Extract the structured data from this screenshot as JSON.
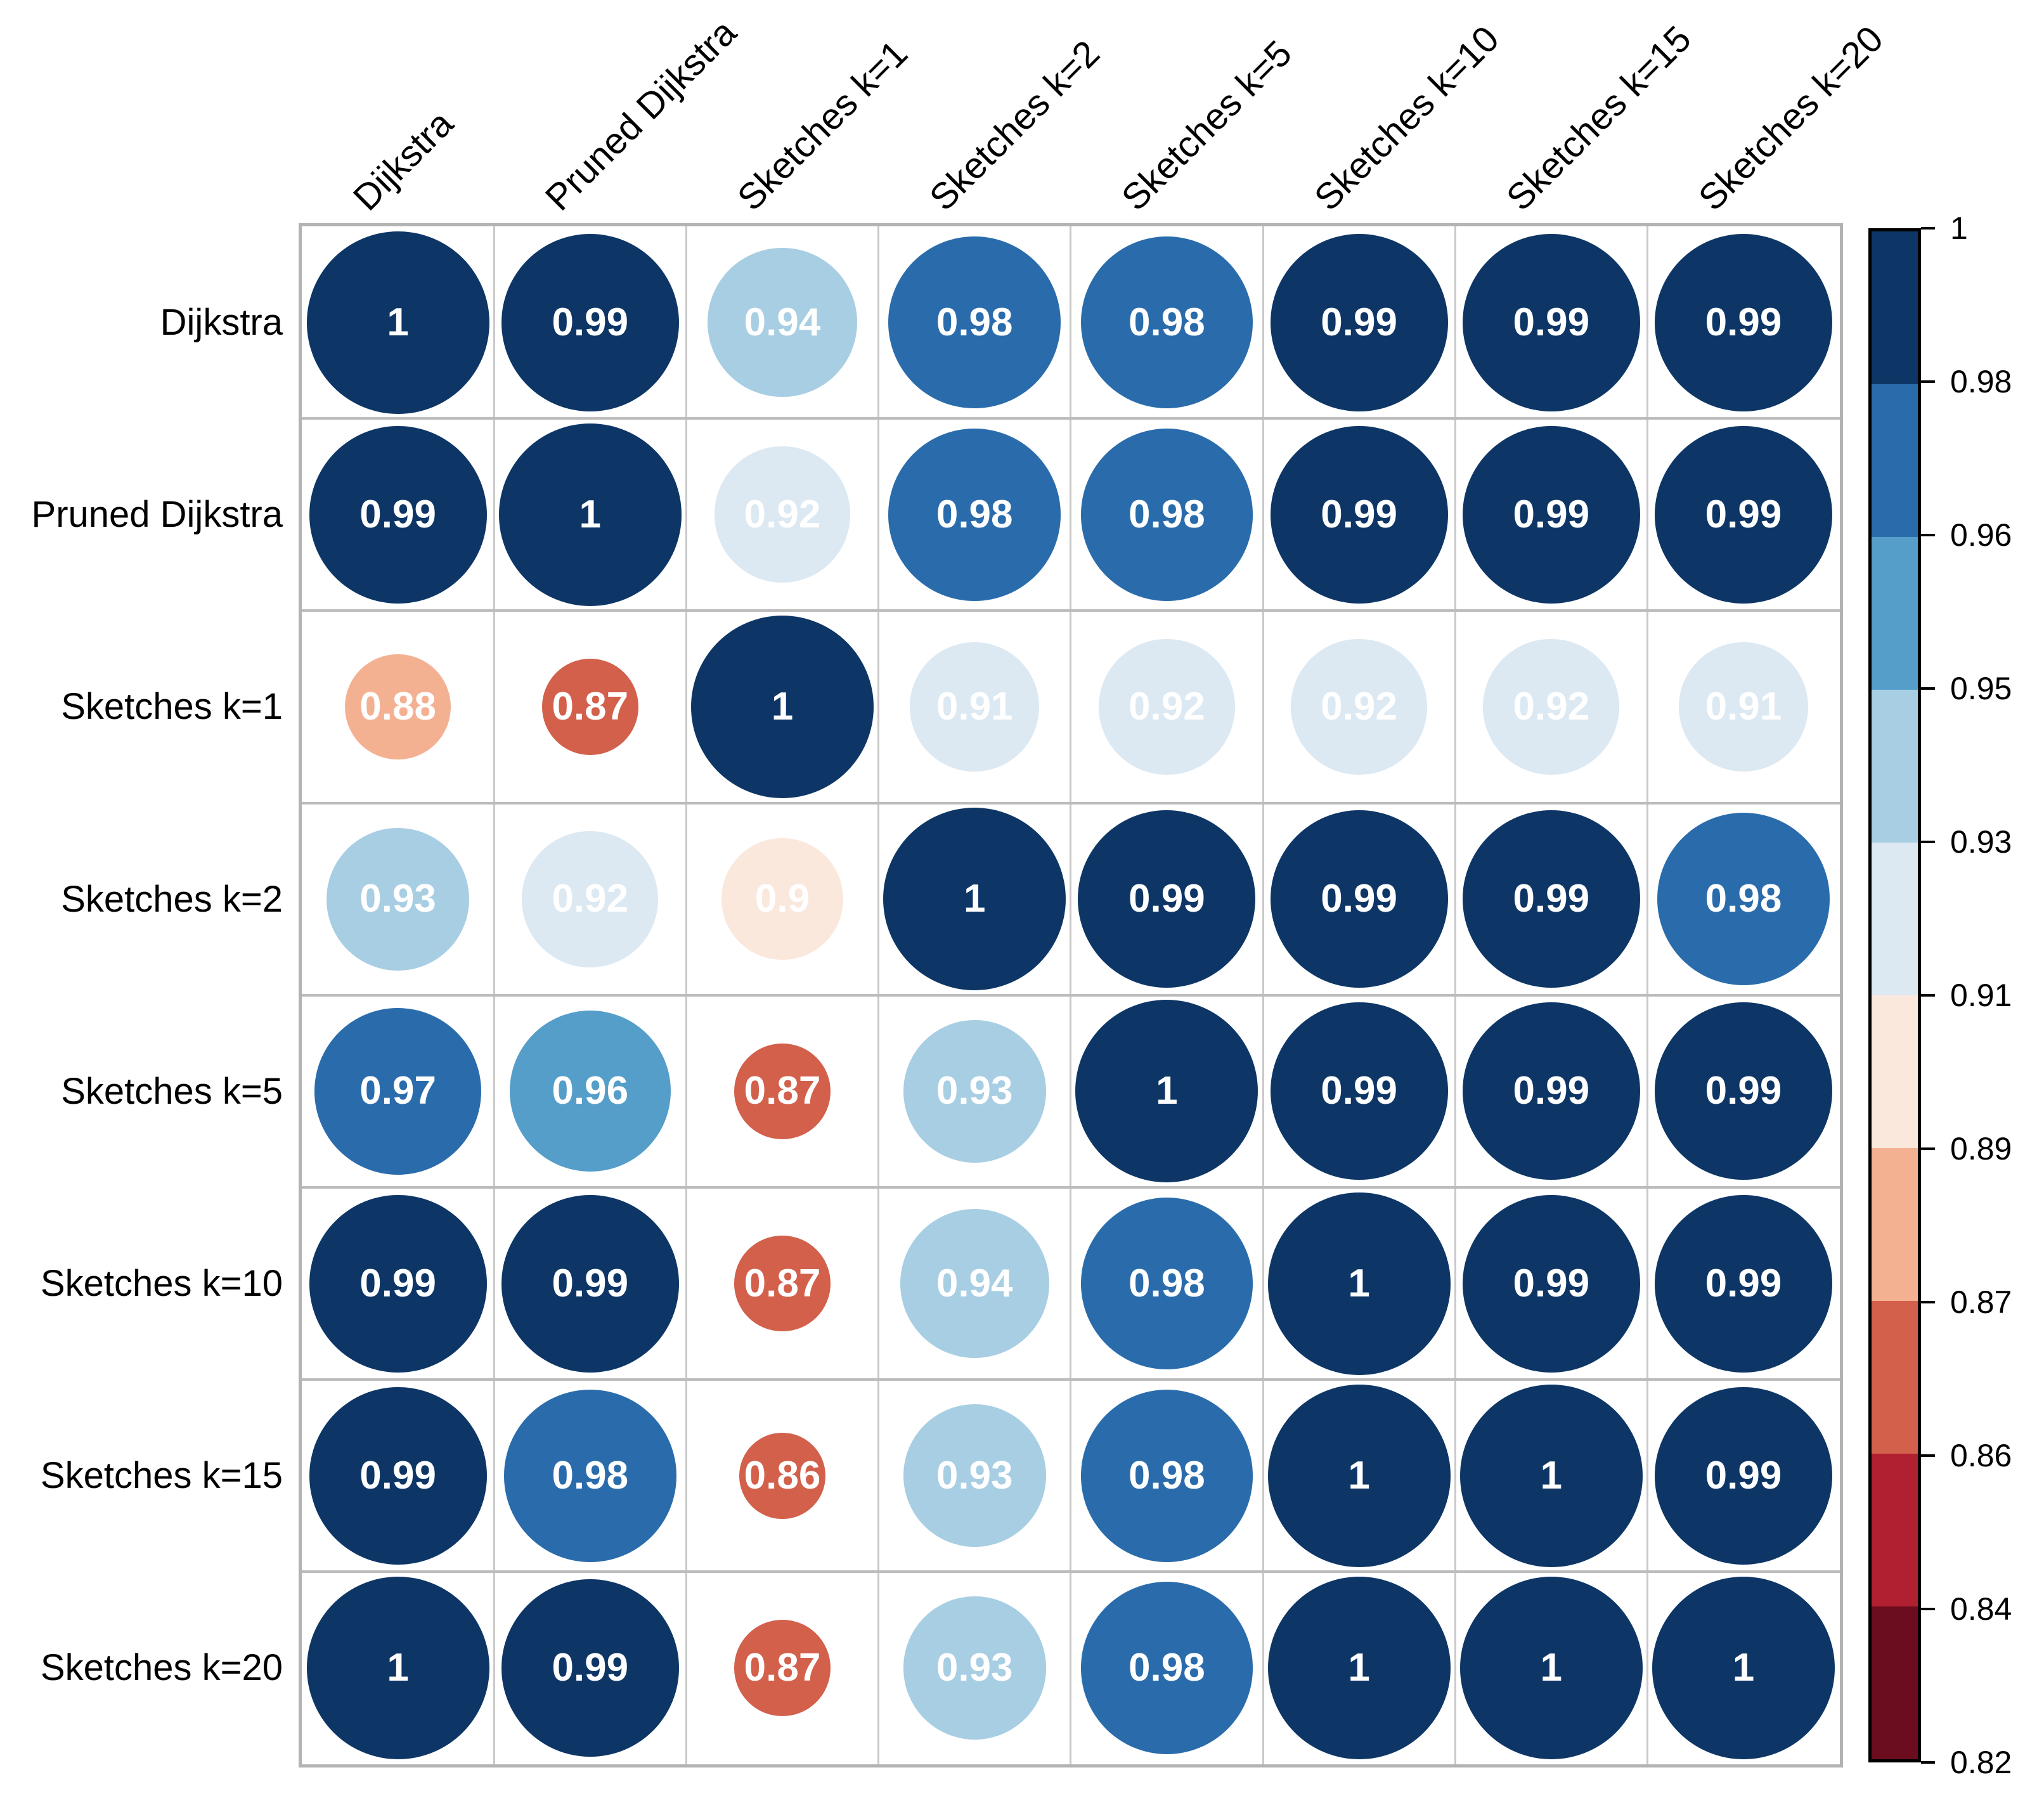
{
  "chart_data": {
    "type": "heatmap",
    "subtype": "correlation-circle-matrix",
    "title": "",
    "row_labels": [
      "Dijkstra",
      "Pruned Dijkstra",
      "Sketches k=1",
      "Sketches k=2",
      "Sketches k=5",
      "Sketches k=10",
      "Sketches k=15",
      "Sketches k=20"
    ],
    "col_labels": [
      "Dijkstra",
      "Pruned Dijkstra",
      "Sketches k=1",
      "Sketches k=2",
      "Sketches k=5",
      "Sketches k=10",
      "Sketches k=15",
      "Sketches k=20"
    ],
    "series": [
      {
        "name": "Dijkstra",
        "values": [
          1,
          0.99,
          0.94,
          0.98,
          0.98,
          0.99,
          0.99,
          0.99
        ]
      },
      {
        "name": "Pruned Dijkstra",
        "values": [
          0.99,
          1,
          0.92,
          0.98,
          0.98,
          0.99,
          0.99,
          0.99
        ]
      },
      {
        "name": "Sketches k=1",
        "values": [
          0.88,
          0.87,
          1,
          0.91,
          0.92,
          0.92,
          0.92,
          0.91
        ]
      },
      {
        "name": "Sketches k=2",
        "values": [
          0.93,
          0.92,
          0.9,
          1,
          0.99,
          0.99,
          0.99,
          0.98
        ]
      },
      {
        "name": "Sketches k=5",
        "values": [
          0.97,
          0.96,
          0.87,
          0.93,
          1,
          0.99,
          0.99,
          0.99
        ]
      },
      {
        "name": "Sketches k=10",
        "values": [
          0.99,
          0.99,
          0.87,
          0.94,
          0.98,
          1,
          0.99,
          0.99
        ]
      },
      {
        "name": "Sketches k=15",
        "values": [
          0.99,
          0.98,
          0.86,
          0.93,
          0.98,
          1,
          1,
          0.99
        ]
      },
      {
        "name": "Sketches k=20",
        "values": [
          1,
          0.99,
          0.87,
          0.93,
          0.98,
          1,
          1,
          1
        ]
      }
    ],
    "value_range": [
      0.82,
      1
    ],
    "legend": {
      "position": "right",
      "tick_labels": [
        "1",
        "0.98",
        "0.96",
        "0.95",
        "0.93",
        "0.91",
        "0.89",
        "0.87",
        "0.86",
        "0.84",
        "0.82"
      ],
      "segment_colors_top_to_bottom": [
        "#0d3666",
        "#2a6cab",
        "#559ec9",
        "#a8cee3",
        "#dce9f2",
        "#fbe8dc",
        "#f4b192",
        "#d2604b",
        "#b02031",
        "#6b0d1f"
      ]
    },
    "encoding": {
      "circle_size_rule": "diameter proportional to sqrt((value - 0.82) / 0.18)",
      "circle_color_thresholds": [
        {
          "min": 0.985,
          "color": "#0d3666"
        },
        {
          "min": 0.965,
          "color": "#2a6cab"
        },
        {
          "min": 0.955,
          "color": "#559ec9"
        },
        {
          "min": 0.925,
          "color": "#a8cee3"
        },
        {
          "min": 0.905,
          "color": "#dce9f2"
        },
        {
          "min": 0.895,
          "color": "#fbe8dc"
        },
        {
          "min": 0.875,
          "color": "#f4b192"
        },
        {
          "min": 0.855,
          "color": "#d2604b"
        },
        {
          "min": 0.84,
          "color": "#b02031"
        },
        {
          "min": 0,
          "color": "#6b0d1f"
        }
      ],
      "value_text_color": "#ffffff"
    },
    "grid": {
      "on": true,
      "inner_line_color": "#c9c9c9",
      "outer_border_color": "#b3b3b3",
      "background": "#ffffff"
    }
  }
}
